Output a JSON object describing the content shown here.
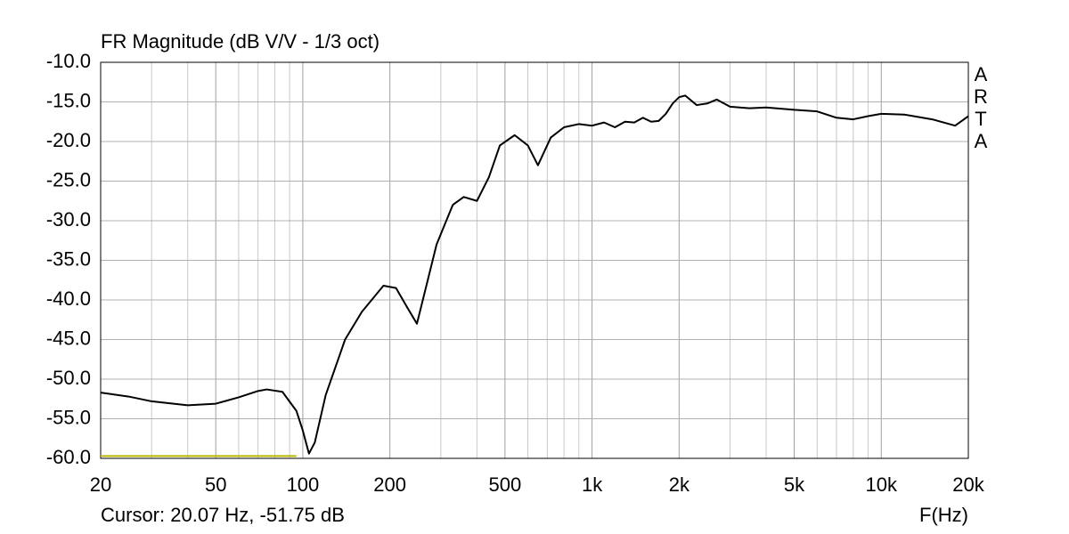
{
  "chart_data": {
    "type": "line",
    "title": "FR Magnitude (dB V/V - 1/3 oct)",
    "xlabel": "F(Hz)",
    "cursor_readout": "Cursor: 20.07 Hz, -51.75 dB",
    "logo": [
      "A",
      "R",
      "T",
      "A"
    ],
    "xscale": "log",
    "grid": true,
    "xlim": [
      20,
      20000
    ],
    "ylim": [
      -60,
      -10
    ],
    "xticks": [
      20,
      50,
      100,
      200,
      500,
      {
        "value": 1000,
        "label": "1k"
      },
      {
        "value": 2000,
        "label": "2k"
      },
      {
        "value": 5000,
        "label": "5k"
      },
      {
        "value": 10000,
        "label": "10k"
      },
      {
        "value": 20000,
        "label": "20k"
      }
    ],
    "xminor": [
      30,
      40,
      60,
      70,
      80,
      90,
      300,
      400,
      600,
      700,
      800,
      900,
      3000,
      4000,
      6000,
      7000,
      8000,
      9000
    ],
    "yticks": [
      {
        "value": -10,
        "label": "-10.0"
      },
      {
        "value": -15,
        "label": "-15.0"
      },
      {
        "value": -20,
        "label": "-20.0"
      },
      {
        "value": -25,
        "label": "-25.0"
      },
      {
        "value": -30,
        "label": "-30.0"
      },
      {
        "value": -35,
        "label": "-35.0"
      },
      {
        "value": -40,
        "label": "-40.0"
      },
      {
        "value": -45,
        "label": "-45.0"
      },
      {
        "value": -50,
        "label": "-50.0"
      },
      {
        "value": -55,
        "label": "-55.0"
      },
      {
        "value": -60,
        "label": "-60.0"
      }
    ],
    "x": [
      20,
      25,
      30,
      40,
      50,
      60,
      70,
      75,
      85,
      95,
      100,
      105,
      110,
      120,
      140,
      160,
      190,
      210,
      230,
      248,
      260,
      290,
      330,
      360,
      400,
      440,
      480,
      540,
      600,
      650,
      720,
      800,
      900,
      1000,
      1100,
      1200,
      1300,
      1400,
      1500,
      1600,
      1700,
      1800,
      1900,
      2000,
      2100,
      2300,
      2500,
      2700,
      3000,
      3500,
      4000,
      5000,
      6000,
      7000,
      8000,
      9000,
      10000,
      12000,
      15000,
      18000,
      20000
    ],
    "series": [
      {
        "color": "#000000",
        "values": [
          -51.7,
          -52.2,
          -52.8,
          -53.3,
          -53.1,
          -52.3,
          -51.5,
          -51.3,
          -51.6,
          -54,
          -56.5,
          -59.4,
          -58,
          -52,
          -45,
          -41.5,
          -38.2,
          -38.5,
          -41,
          -43,
          -40,
          -33,
          -28,
          -27,
          -27.5,
          -24.5,
          -20.5,
          -19.2,
          -20.5,
          -23,
          -19.5,
          -18.2,
          -17.8,
          -18,
          -17.6,
          -18.2,
          -17.5,
          -17.6,
          -17,
          -17.5,
          -17.4,
          -16.5,
          -15.2,
          -14.4,
          -14.2,
          -15.4,
          -15.2,
          -14.7,
          -15.6,
          -15.8,
          -15.7,
          -16,
          -16.2,
          -17,
          -17.2,
          -16.8,
          -16.5,
          -16.6,
          -17.2,
          -18,
          -16.8
        ]
      }
    ],
    "reference": {
      "x": [
        20,
        95
      ],
      "values": [
        -59.7,
        -59.7
      ],
      "color": "#b8b800"
    }
  }
}
